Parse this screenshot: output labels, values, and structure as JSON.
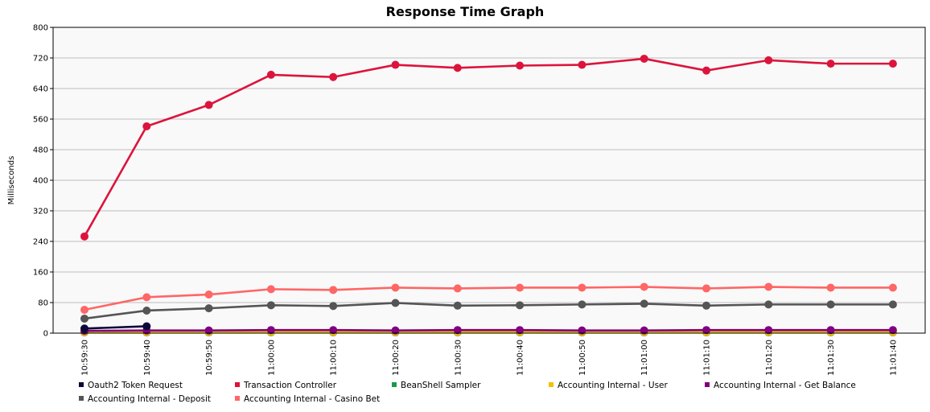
{
  "chart_data": {
    "type": "line",
    "title": "Response Time Graph",
    "xlabel": "",
    "ylabel": "Milliseconds",
    "ylim": [
      0,
      800
    ],
    "yticks": [
      0,
      80,
      160,
      240,
      320,
      400,
      480,
      560,
      640,
      720,
      800
    ],
    "grid": true,
    "legend_position": "bottom",
    "x": [
      "10:59:30",
      "10:59:40",
      "10:59:50",
      "11:00:00",
      "11:00:10",
      "11:00:20",
      "11:00:30",
      "11:00:40",
      "11:00:50",
      "11:01:00",
      "11:01:10",
      "11:01:20",
      "11:01:30",
      "11:01:40"
    ],
    "series": [
      {
        "name": "Oauth2 Token Request",
        "color": "#0a0a3a",
        "values": [
          12,
          18,
          null,
          null,
          null,
          null,
          null,
          null,
          null,
          null,
          null,
          null,
          null,
          null
        ]
      },
      {
        "name": "Transaction Controller",
        "color": "#dc143c",
        "values": [
          253,
          541,
          597,
          676,
          670,
          702,
          694,
          700,
          702,
          718,
          687,
          714,
          705,
          705
        ]
      },
      {
        "name": "BeanShell Sampler",
        "color": "#1a9a4a",
        "values": [
          2,
          2,
          2,
          2,
          2,
          2,
          2,
          2,
          2,
          2,
          2,
          2,
          2,
          2
        ]
      },
      {
        "name": "Accounting Internal - User",
        "color": "#f5c000",
        "values": [
          3,
          3,
          3,
          3,
          3,
          3,
          3,
          3,
          3,
          3,
          3,
          3,
          3,
          3
        ]
      },
      {
        "name": "Accounting Internal - Get Balance",
        "color": "#800080",
        "values": [
          6,
          7,
          7,
          8,
          8,
          7,
          8,
          8,
          7,
          7,
          8,
          8,
          8,
          8
        ]
      },
      {
        "name": "Accounting Internal - Deposit",
        "color": "#555555",
        "values": [
          38,
          59,
          65,
          73,
          71,
          79,
          72,
          73,
          75,
          77,
          72,
          75,
          75,
          75
        ]
      },
      {
        "name": "Accounting Internal - Casino Bet",
        "color": "#ff6666",
        "values": [
          61,
          94,
          101,
          115,
          113,
          119,
          117,
          119,
          119,
          121,
          117,
          121,
          119,
          119
        ]
      }
    ]
  }
}
